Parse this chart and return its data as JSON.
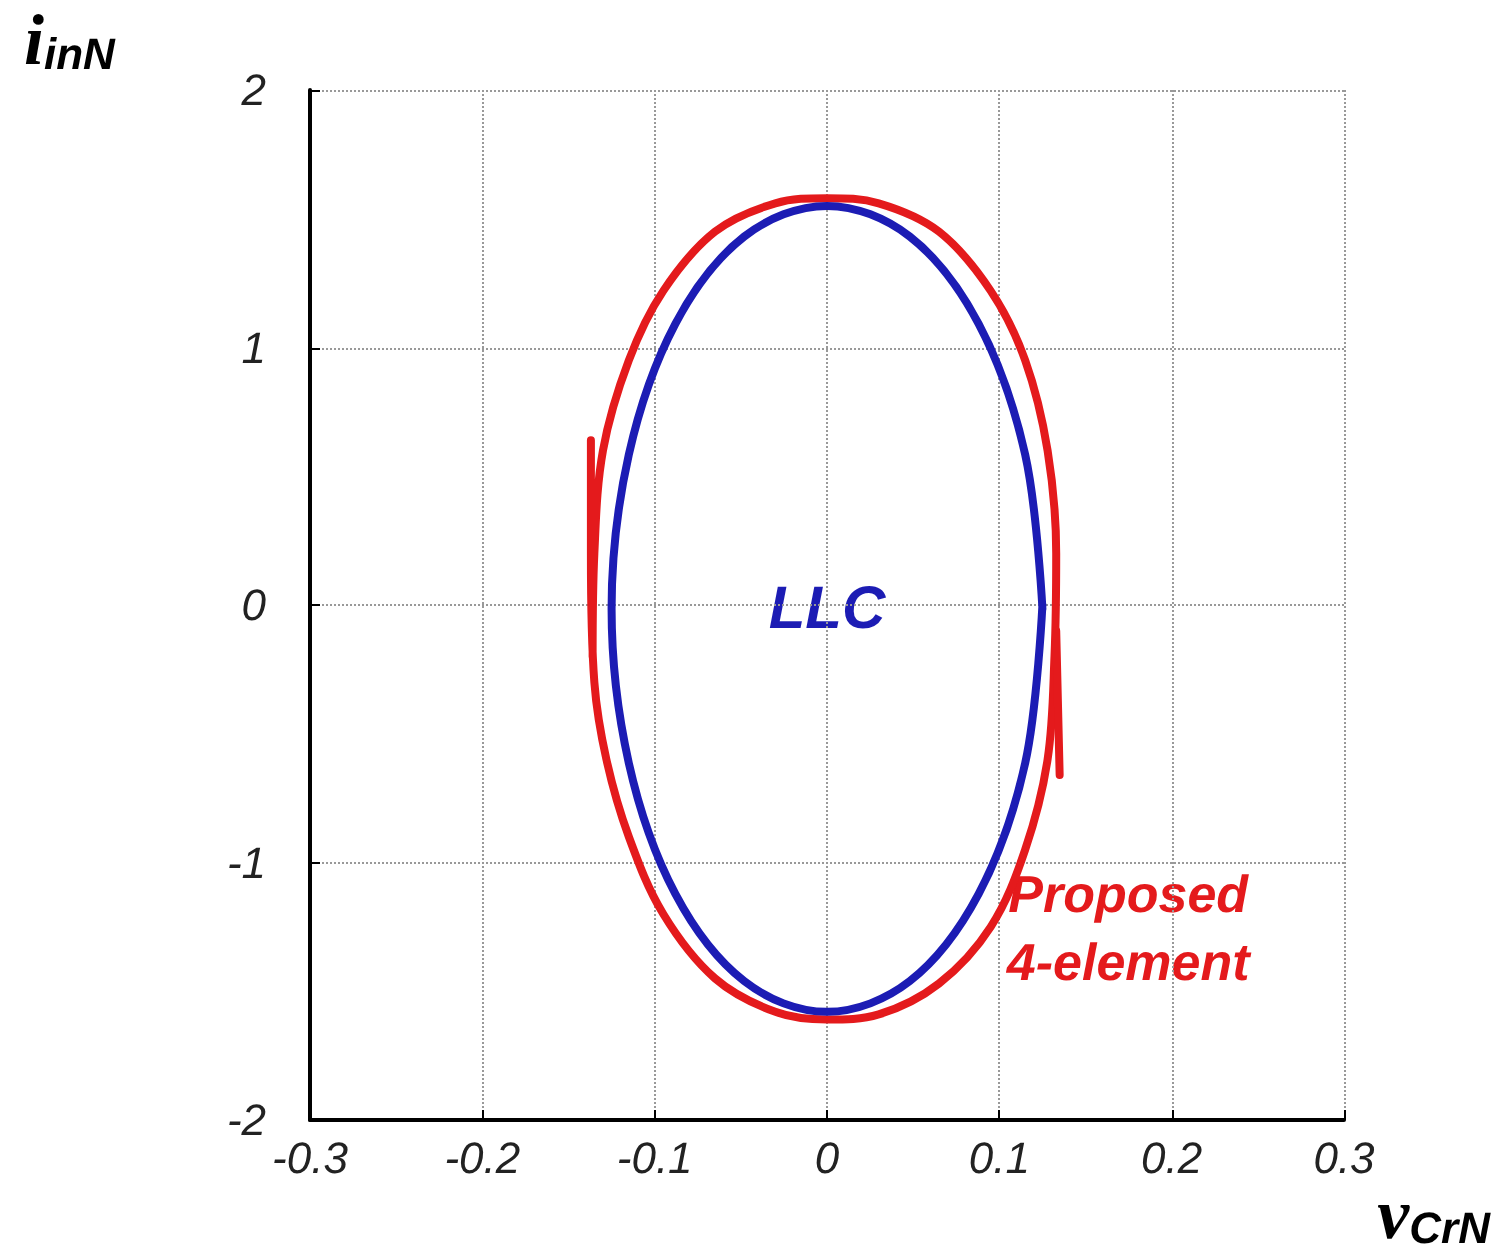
{
  "chart_data": {
    "type": "line",
    "xlabel": "v$_{CrN}$",
    "ylabel": "i$_{inN}$",
    "xlim": [
      -0.3,
      0.3
    ],
    "xticks": [
      -0.3,
      -0.2,
      -0.1,
      0,
      0.1,
      0.2,
      0.3
    ],
    "ylim": [
      -2,
      2
    ],
    "yticks": [
      -2,
      -1,
      0,
      1,
      2
    ],
    "grid": true,
    "legend": false,
    "marker": "none",
    "line_style": "solid",
    "series": [
      {
        "name": "Proposed 4-element",
        "color": "#e41a1c",
        "x": [
          -0.137,
          -0.137,
          -0.135,
          -0.128,
          -0.115,
          -0.095,
          -0.065,
          -0.03,
          0,
          0.03,
          0.065,
          0.095,
          0.115,
          0.128,
          0.132,
          0.133,
          0.128,
          0.115,
          0.095,
          0.065,
          0.03,
          0,
          -0.03,
          -0.065,
          -0.095,
          -0.115,
          -0.13,
          -0.135,
          -0.136
        ],
        "values": [
          0.64,
          0.2,
          -0.3,
          -0.6,
          -0.9,
          -1.2,
          -1.45,
          -1.58,
          -1.61,
          -1.59,
          -1.47,
          -1.25,
          -0.95,
          -0.6,
          -0.2,
          0.2,
          0.6,
          0.95,
          1.22,
          1.45,
          1.56,
          1.58,
          1.56,
          1.45,
          1.22,
          0.95,
          0.6,
          0.2,
          -0.2
        ]
      },
      {
        "color": "#e41a1c",
        "x": [
          0.135,
          0.133
        ],
        "values": [
          -0.66,
          -0.1
        ]
      },
      {
        "name": "LLC",
        "color": "#1c1cb4",
        "x": [
          0.125,
          0.115,
          0.088,
          0.048,
          0,
          -0.048,
          -0.088,
          -0.115,
          -0.125,
          -0.115,
          -0.088,
          -0.048,
          0,
          0.048,
          0.088,
          0.115,
          0.125
        ],
        "values": [
          -0.015,
          0.584,
          1.092,
          1.431,
          1.55,
          1.431,
          1.092,
          0.584,
          -0.015,
          -0.614,
          -1.122,
          -1.461,
          -1.58,
          -1.461,
          -1.122,
          -0.614,
          0
        ]
      }
    ]
  }
}
